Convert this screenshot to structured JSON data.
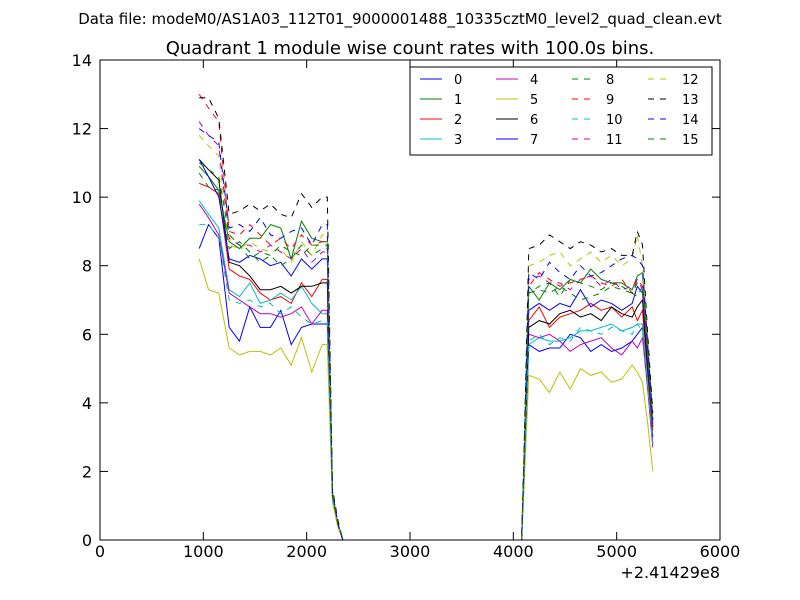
{
  "figure": {
    "suptitle": "Data file: modeM0/AS1A03_112T01_9000001488_10335cztM0_level2_quad_clean.evt"
  },
  "chart_data": {
    "type": "line",
    "title": "Quadrant 1 module wise count rates with 100.0s bins.",
    "xlabel": "",
    "ylabel": "",
    "xlim": [
      0,
      6000
    ],
    "ylim": [
      0,
      14
    ],
    "x_ticks": [
      0,
      1000,
      2000,
      3000,
      4000,
      5000,
      6000
    ],
    "y_ticks": [
      0,
      2,
      4,
      6,
      8,
      10,
      12,
      14
    ],
    "x_offset_label": "+2.41429e8",
    "grid": false,
    "legend": {
      "placement": "top-right",
      "columns": 4
    },
    "x": [
      960,
      1050,
      1150,
      1250,
      1350,
      1450,
      1550,
      1650,
      1750,
      1850,
      1950,
      2050,
      2150,
      2200,
      2250,
      2300,
      2350,
      2400,
      2500,
      2600,
      2700,
      2800,
      2900,
      3000,
      3100,
      3200,
      3300,
      3400,
      3500,
      3600,
      3700,
      3800,
      3900,
      4000,
      4050,
      4080,
      4100,
      4150,
      4250,
      4350,
      4450,
      4550,
      4650,
      4750,
      4850,
      4950,
      5050,
      5150,
      5200,
      5250,
      5300,
      5350
    ],
    "series": [
      {
        "name": "0",
        "color": "#0000ff",
        "dash": "solid",
        "values": [
          8.5,
          9.2,
          8.8,
          6.2,
          5.8,
          6.8,
          6.2,
          6.2,
          6.7,
          5.7,
          6.2,
          6.3,
          6.3,
          6.3,
          1.2,
          0.5,
          0,
          0,
          0,
          0,
          0,
          0,
          0,
          0,
          0,
          0,
          0,
          0,
          0,
          0,
          0,
          0,
          0,
          0,
          0,
          0,
          1.5,
          5.7,
          5.5,
          5.6,
          5.6,
          6.0,
          5.9,
          5.5,
          5.7,
          5.5,
          5.6,
          5.8,
          6.0,
          6.2,
          4.5,
          3.0
        ]
      },
      {
        "name": "1",
        "color": "#008000",
        "dash": "solid",
        "values": [
          10.9,
          10.6,
          10.2,
          8.7,
          8.5,
          8.8,
          8.8,
          9.2,
          9.1,
          8.2,
          9.3,
          8.8,
          8.7,
          8.7,
          1.3,
          0.5,
          0,
          0,
          0,
          0,
          0,
          0,
          0,
          0,
          0,
          0,
          0,
          0,
          0,
          0,
          0,
          0,
          0,
          0,
          0,
          0,
          2.0,
          7.4,
          7.0,
          7.5,
          7.3,
          7.6,
          7.5,
          7.9,
          7.6,
          7.5,
          7.5,
          7.3,
          7.7,
          7.8,
          5.5,
          3.5
        ]
      },
      {
        "name": "2",
        "color": "#ff0000",
        "dash": "solid",
        "values": [
          10.4,
          10.3,
          10.1,
          7.9,
          7.7,
          7.6,
          7.2,
          7.0,
          7.1,
          6.9,
          7.5,
          7.1,
          7.6,
          7.6,
          1.3,
          0.5,
          0,
          0,
          0,
          0,
          0,
          0,
          0,
          0,
          0,
          0,
          0,
          0,
          0,
          0,
          0,
          0,
          0,
          0,
          0,
          0,
          1.8,
          6.4,
          6.8,
          6.2,
          6.5,
          6.6,
          6.7,
          6.9,
          6.7,
          6.8,
          6.5,
          6.8,
          6.4,
          6.7,
          4.8,
          3.2
        ]
      },
      {
        "name": "3",
        "color": "#00bfbf",
        "dash": "solid",
        "values": [
          9.9,
          9.5,
          9.1,
          7.3,
          7.1,
          7.5,
          6.9,
          7.0,
          7.2,
          7.0,
          7.4,
          6.9,
          6.6,
          6.6,
          1.2,
          0.5,
          0,
          0,
          0,
          0,
          0,
          0,
          0,
          0,
          0,
          0,
          0,
          0,
          0,
          0,
          0,
          0,
          0,
          0,
          0,
          0,
          1.6,
          5.7,
          5.9,
          5.8,
          5.8,
          5.9,
          6.1,
          6.1,
          6.2,
          6.3,
          6.1,
          6.2,
          6.3,
          6.3,
          4.6,
          2.8
        ]
      },
      {
        "name": "4",
        "color": "#bf00bf",
        "dash": "solid",
        "values": [
          9.8,
          9.4,
          8.9,
          7.2,
          7.0,
          6.8,
          6.6,
          6.6,
          6.5,
          6.6,
          6.8,
          6.3,
          6.7,
          6.7,
          1.2,
          0.5,
          0,
          0,
          0,
          0,
          0,
          0,
          0,
          0,
          0,
          0,
          0,
          0,
          0,
          0,
          0,
          0,
          0,
          0,
          0,
          0,
          1.6,
          6.0,
          5.9,
          6.0,
          5.8,
          5.5,
          5.7,
          5.8,
          5.9,
          5.6,
          5.4,
          5.8,
          5.6,
          5.9,
          4.4,
          2.7
        ]
      },
      {
        "name": "5",
        "color": "#bfbf00",
        "dash": "solid",
        "values": [
          8.2,
          7.3,
          7.2,
          5.6,
          5.4,
          5.5,
          5.5,
          5.4,
          5.6,
          5.1,
          5.9,
          4.9,
          5.7,
          5.7,
          1.1,
          0.4,
          0,
          0,
          0,
          0,
          0,
          0,
          0,
          0,
          0,
          0,
          0,
          0,
          0,
          0,
          0,
          0,
          0,
          0,
          0,
          0,
          1.3,
          4.8,
          4.7,
          4.3,
          4.9,
          4.4,
          5.0,
          4.8,
          4.9,
          4.6,
          4.7,
          5.1,
          4.9,
          4.6,
          3.4,
          2.0
        ]
      },
      {
        "name": "6",
        "color": "#000000",
        "dash": "solid",
        "values": [
          11.1,
          10.8,
          10.5,
          8.1,
          8.0,
          7.7,
          7.3,
          7.3,
          7.4,
          7.2,
          7.4,
          7.4,
          7.5,
          7.5,
          1.3,
          0.5,
          0,
          0,
          0,
          0,
          0,
          0,
          0,
          0,
          0,
          0,
          0,
          0,
          0,
          0,
          0,
          0,
          0,
          0,
          0,
          0,
          1.8,
          6.2,
          6.4,
          6.3,
          6.6,
          6.7,
          6.5,
          6.6,
          6.4,
          6.8,
          6.6,
          6.5,
          6.8,
          7.0,
          5.0,
          3.3
        ]
      },
      {
        "name": "7",
        "color": "#0000ff",
        "dash": "solid",
        "values": [
          11.1,
          10.6,
          10.0,
          8.2,
          8.1,
          8.3,
          8.2,
          8.0,
          8.1,
          7.7,
          8.2,
          7.9,
          8.2,
          8.2,
          1.4,
          0.5,
          0,
          0,
          0,
          0,
          0,
          0,
          0,
          0,
          0,
          0,
          0,
          0,
          0,
          0,
          0,
          0,
          0,
          0,
          0,
          0,
          1.9,
          6.7,
          6.9,
          6.7,
          6.9,
          6.8,
          7.3,
          6.8,
          7.0,
          6.9,
          6.7,
          6.9,
          7.4,
          7.2,
          5.3,
          3.4
        ]
      },
      {
        "name": "8",
        "color": "#008000",
        "dash": "dashed",
        "values": [
          10.7,
          10.3,
          10.2,
          8.5,
          8.7,
          8.4,
          8.1,
          8.3,
          8.0,
          8.2,
          8.6,
          8.3,
          8.5,
          8.5,
          1.4,
          0.5,
          0,
          0,
          0,
          0,
          0,
          0,
          0,
          0,
          0,
          0,
          0,
          0,
          0,
          0,
          0,
          0,
          0,
          0,
          0,
          0,
          2.0,
          7.2,
          7.3,
          7.2,
          7.4,
          7.2,
          7.0,
          7.1,
          7.2,
          7.4,
          7.3,
          7.2,
          7.5,
          7.3,
          5.4,
          3.5
        ]
      },
      {
        "name": "9",
        "color": "#ff0000",
        "dash": "dashed",
        "values": [
          13.0,
          12.6,
          12.2,
          9.0,
          8.9,
          9.2,
          8.9,
          8.6,
          8.8,
          8.5,
          8.9,
          8.6,
          8.7,
          8.7,
          1.4,
          0.5,
          0,
          0,
          0,
          0,
          0,
          0,
          0,
          0,
          0,
          0,
          0,
          0,
          0,
          0,
          0,
          0,
          0,
          0,
          0,
          0,
          2.0,
          7.4,
          7.8,
          7.6,
          7.4,
          7.5,
          7.6,
          7.7,
          7.5,
          7.4,
          7.6,
          7.2,
          7.6,
          7.4,
          5.5,
          3.4
        ]
      },
      {
        "name": "10",
        "color": "#00bfbf",
        "dash": "dashed",
        "values": [
          9.2,
          9.2,
          8.8,
          7.0,
          6.9,
          7.0,
          6.8,
          6.9,
          6.6,
          6.8,
          6.5,
          6.3,
          6.4,
          6.4,
          1.2,
          0.5,
          0,
          0,
          0,
          0,
          0,
          0,
          0,
          0,
          0,
          0,
          0,
          0,
          0,
          0,
          0,
          0,
          0,
          0,
          0,
          0,
          1.6,
          5.8,
          6.0,
          5.7,
          5.9,
          5.8,
          6.2,
          6.1,
          6.0,
          6.2,
          6.1,
          6.0,
          6.3,
          6.1,
          4.5,
          2.8
        ]
      },
      {
        "name": "11",
        "color": "#bf00bf",
        "dash": "dashed",
        "values": [
          12.2,
          11.8,
          11.5,
          8.8,
          8.6,
          8.6,
          8.4,
          8.6,
          8.4,
          8.2,
          8.5,
          8.1,
          8.4,
          8.4,
          1.4,
          0.5,
          0,
          0,
          0,
          0,
          0,
          0,
          0,
          0,
          0,
          0,
          0,
          0,
          0,
          0,
          0,
          0,
          0,
          0,
          0,
          0,
          1.9,
          7.6,
          7.7,
          7.5,
          7.5,
          7.3,
          7.6,
          7.7,
          7.4,
          7.6,
          7.3,
          7.4,
          7.6,
          7.3,
          5.4,
          3.3
        ]
      },
      {
        "name": "12",
        "color": "#bfbf00",
        "dash": "dashed",
        "values": [
          11.8,
          11.5,
          11.2,
          8.6,
          8.5,
          8.7,
          8.5,
          8.4,
          8.5,
          8.1,
          8.7,
          8.3,
          8.9,
          8.9,
          1.4,
          0.5,
          0,
          0,
          0,
          0,
          0,
          0,
          0,
          0,
          0,
          0,
          0,
          0,
          0,
          0,
          0,
          0,
          0,
          0,
          0,
          0,
          2.1,
          8.0,
          8.1,
          8.3,
          8.4,
          8.0,
          8.2,
          8.4,
          8.1,
          8.3,
          8.0,
          8.2,
          8.9,
          8.0,
          5.8,
          3.6
        ]
      },
      {
        "name": "13",
        "color": "#000000",
        "dash": "dashed",
        "values": [
          12.9,
          12.9,
          12.3,
          9.5,
          9.6,
          9.8,
          9.6,
          9.8,
          9.5,
          9.4,
          10.1,
          9.7,
          10.0,
          10.0,
          1.5,
          0.6,
          0,
          0,
          0,
          0,
          0,
          0,
          0,
          0,
          0,
          0,
          0,
          0,
          0,
          0,
          0,
          0,
          0,
          0,
          0,
          0,
          2.2,
          8.5,
          8.6,
          8.9,
          8.7,
          8.5,
          8.7,
          8.6,
          8.4,
          8.5,
          8.3,
          8.3,
          9.0,
          8.6,
          6.0,
          3.7
        ]
      },
      {
        "name": "14",
        "color": "#0000ff",
        "dash": "dashed",
        "values": [
          12.0,
          11.8,
          11.6,
          9.1,
          9.2,
          9.0,
          9.4,
          8.9,
          8.8,
          9.0,
          9.1,
          8.6,
          9.2,
          9.2,
          1.4,
          0.5,
          0,
          0,
          0,
          0,
          0,
          0,
          0,
          0,
          0,
          0,
          0,
          0,
          0,
          0,
          0,
          0,
          0,
          0,
          0,
          0,
          2.0,
          7.8,
          7.6,
          8.1,
          7.8,
          7.6,
          8.0,
          7.7,
          7.8,
          8.0,
          8.2,
          8.3,
          8.2,
          8.0,
          5.7,
          3.5
        ]
      },
      {
        "name": "15",
        "color": "#008000",
        "dash": "dashed",
        "values": [
          11.0,
          10.8,
          10.6,
          8.9,
          8.6,
          8.2,
          8.4,
          8.3,
          8.6,
          8.4,
          8.3,
          8.6,
          8.6,
          8.6,
          1.4,
          0.5,
          0,
          0,
          0,
          0,
          0,
          0,
          0,
          0,
          0,
          0,
          0,
          0,
          0,
          0,
          0,
          0,
          0,
          0,
          0,
          0,
          1.9,
          7.2,
          7.4,
          7.5,
          7.1,
          7.6,
          7.5,
          7.4,
          7.3,
          7.5,
          7.4,
          7.2,
          7.1,
          7.4,
          5.3,
          3.3
        ]
      }
    ]
  }
}
